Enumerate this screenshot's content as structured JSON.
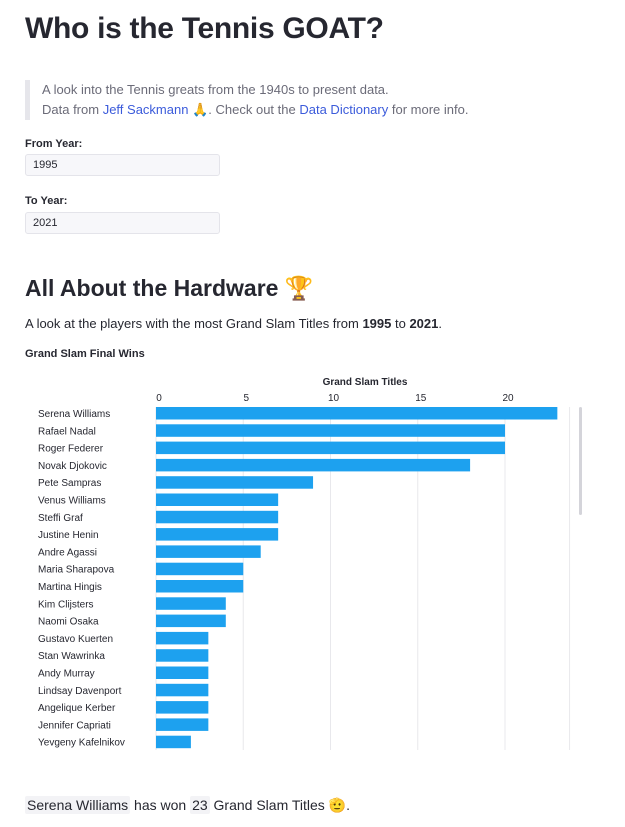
{
  "header": {
    "title": "Who is the Tennis GOAT?"
  },
  "intro": {
    "line1": "A look into the Tennis greats from the 1940s to present data.",
    "line2_prefix": "Data from",
    "source_link": "Jeff Sackmann",
    "pray_emoji": "🙏",
    "line2_middle": ". Check out the",
    "dictionary_link": "Data Dictionary",
    "line2_suffix": "for more info."
  },
  "filters": {
    "from_label": "From Year:",
    "from_value": "1995",
    "to_label": "To Year:",
    "to_value": "2021"
  },
  "section": {
    "title": "All About the Hardware",
    "trophy_emoji": "🏆",
    "desc_prefix": "A look at the players with the most Grand Slam Titles from",
    "from_year": "1995",
    "desc_to": "to",
    "to_year": "2021"
  },
  "chart_caption": "Grand Slam Final Wins",
  "chart_data": {
    "type": "bar",
    "orientation": "horizontal",
    "title": "Grand Slam Titles",
    "xlabel": "Grand Slam Titles",
    "ylabel": "",
    "xlim": [
      0,
      24
    ],
    "x_ticks": [
      0,
      5,
      10,
      15,
      20
    ],
    "categories": [
      "Serena Williams",
      "Rafael Nadal",
      "Roger Federer",
      "Novak Djokovic",
      "Pete Sampras",
      "Venus Williams",
      "Steffi Graf",
      "Justine Henin",
      "Andre Agassi",
      "Maria Sharapova",
      "Martina Hingis",
      "Kim Clijsters",
      "Naomi Osaka",
      "Gustavo Kuerten",
      "Stan Wawrinka",
      "Andy Murray",
      "Lindsay Davenport",
      "Angelique Kerber",
      "Jennifer Capriati",
      "Yevgeny Kafelnikov"
    ],
    "values": [
      23,
      20,
      20,
      18,
      9,
      7,
      7,
      7,
      6,
      5,
      5,
      4,
      4,
      3,
      3,
      3,
      3,
      3,
      3,
      2
    ],
    "bar_color": "#1da1ef",
    "grid": true
  },
  "summary": {
    "player": "Serena Williams",
    "has_won": "has won",
    "count": "23",
    "suffix": "Grand Slam Titles",
    "emoji": "🫡",
    "period": "."
  }
}
